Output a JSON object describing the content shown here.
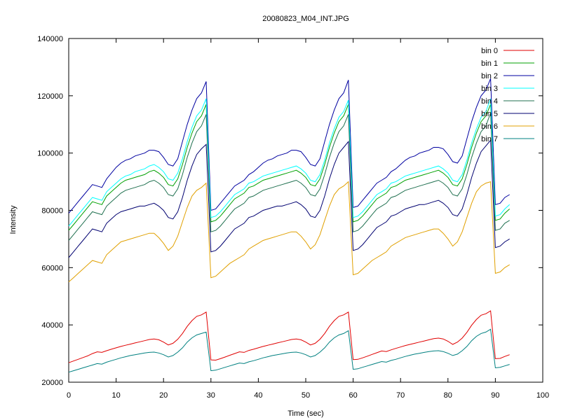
{
  "chart_data": {
    "type": "line",
    "title": "20080823_M04_INT.JPG",
    "xlabel": "Time (sec)",
    "ylabel": "Intensity",
    "xlim": [
      0,
      100
    ],
    "ylim": [
      20000,
      140000
    ],
    "xticks": [
      0,
      10,
      20,
      30,
      40,
      50,
      60,
      70,
      80,
      90,
      100
    ],
    "yticks": [
      20000,
      40000,
      60000,
      80000,
      100000,
      120000,
      140000
    ],
    "grid": false,
    "legend_position": "top-right",
    "x": [
      0,
      1,
      2,
      3,
      4,
      5,
      6,
      7,
      8,
      9,
      10,
      11,
      12,
      13,
      14,
      15,
      16,
      17,
      18,
      19,
      20,
      21,
      22,
      23,
      24,
      25,
      26,
      27,
      28,
      29,
      30,
      31,
      32,
      33,
      34,
      35,
      36,
      37,
      38,
      39,
      40,
      41,
      42,
      43,
      44,
      45,
      46,
      47,
      48,
      49,
      50,
      51,
      52,
      53,
      54,
      55,
      56,
      57,
      58,
      59,
      60,
      61,
      62,
      63,
      64,
      65,
      66,
      67,
      68,
      69,
      70,
      71,
      72,
      73,
      74,
      75,
      76,
      77,
      78,
      79,
      80,
      81,
      82,
      83,
      84,
      85,
      86,
      87,
      88,
      89,
      90,
      91,
      92,
      93
    ],
    "series": [
      {
        "name": "bin 0",
        "color": "#e00000",
        "values": [
          26800,
          27400,
          28000,
          28600,
          29200,
          30000,
          30600,
          30400,
          31000,
          31500,
          32000,
          32500,
          32900,
          33300,
          33700,
          34100,
          34500,
          34900,
          35100,
          34800,
          34000,
          33000,
          33600,
          35000,
          37000,
          39500,
          41500,
          43000,
          43500,
          44500,
          27800,
          27700,
          28200,
          28800,
          29400,
          30000,
          30600,
          30400,
          31100,
          31500,
          32000,
          32500,
          32900,
          33300,
          33700,
          34100,
          34500,
          34900,
          35100,
          34800,
          34000,
          33000,
          33600,
          35000,
          37000,
          39500,
          41500,
          43000,
          43500,
          44500,
          27900,
          28000,
          28500,
          29100,
          29700,
          30300,
          30900,
          30700,
          31300,
          31800,
          32300,
          32800,
          33200,
          33600,
          34000,
          34400,
          34800,
          35200,
          35400,
          35100,
          34300,
          33200,
          34000,
          35400,
          37400,
          39900,
          41900,
          43400,
          43900,
          44900,
          28200,
          28300,
          29000,
          29600
        ]
      },
      {
        "name": "bin 1",
        "color": "#00a000",
        "values": [
          73000,
          75000,
          77000,
          79000,
          81000,
          83000,
          82500,
          82000,
          85000,
          86500,
          88000,
          89500,
          90500,
          91000,
          91500,
          92000,
          92500,
          93500,
          94000,
          93000,
          91500,
          89000,
          88500,
          91000,
          96000,
          102000,
          107000,
          111000,
          113000,
          117000,
          76000,
          76500,
          78000,
          80000,
          82000,
          84000,
          85000,
          86000,
          88000,
          88500,
          89500,
          90500,
          91000,
          91500,
          92000,
          92500,
          93000,
          93500,
          94000,
          93000,
          91500,
          89000,
          88500,
          91000,
          96000,
          102000,
          107000,
          111000,
          113000,
          117000,
          76000,
          76500,
          78000,
          80000,
          82000,
          84000,
          85000,
          86000,
          88000,
          88500,
          89500,
          90500,
          91000,
          91500,
          92000,
          92500,
          93000,
          93500,
          94000,
          93000,
          91500,
          89000,
          88500,
          91000,
          96000,
          102000,
          107000,
          111000,
          113000,
          117000,
          76500,
          77000,
          79000,
          80500
        ]
      },
      {
        "name": "bin 2",
        "color": "#0000a0",
        "values": [
          79000,
          81000,
          83000,
          85000,
          87000,
          89000,
          88500,
          88000,
          91000,
          93000,
          95000,
          96500,
          97500,
          98000,
          99000,
          99500,
          100000,
          101000,
          101000,
          100500,
          98500,
          96000,
          95500,
          98000,
          104000,
          110000,
          115000,
          119000,
          121000,
          125000,
          80000,
          80500,
          82500,
          84500,
          86500,
          88500,
          89500,
          90500,
          92500,
          93500,
          95000,
          96500,
          97500,
          98000,
          99000,
          99500,
          100000,
          101000,
          101000,
          100500,
          98500,
          96000,
          95500,
          98000,
          104000,
          110000,
          115000,
          119000,
          121000,
          125500,
          81000,
          81500,
          83500,
          85500,
          87500,
          89500,
          90500,
          91500,
          93500,
          94500,
          96000,
          97500,
          98500,
          99000,
          100000,
          100500,
          101000,
          102000,
          102000,
          101500,
          99500,
          97000,
          96500,
          99000,
          105000,
          111000,
          116000,
          120000,
          122000,
          126000,
          82000,
          82500,
          84500,
          85500
        ]
      },
      {
        "name": "bin 3",
        "color": "#00ffff",
        "values": [
          74500,
          76500,
          78500,
          80500,
          82500,
          84500,
          84000,
          83500,
          86500,
          88000,
          89500,
          91000,
          92000,
          92500,
          93500,
          94000,
          94500,
          95500,
          96000,
          95000,
          93500,
          91000,
          90500,
          93000,
          98000,
          104000,
          109000,
          113000,
          115000,
          119000,
          77500,
          78000,
          79500,
          81500,
          83500,
          85500,
          86500,
          87500,
          89500,
          90000,
          91000,
          92000,
          92500,
          93000,
          93500,
          94000,
          94500,
          95000,
          95500,
          94500,
          93000,
          90500,
          90000,
          92500,
          97500,
          103500,
          108500,
          112500,
          114500,
          118500,
          77500,
          78000,
          79500,
          81500,
          83500,
          85500,
          86500,
          87500,
          89500,
          90000,
          91000,
          92000,
          92500,
          93000,
          93500,
          94000,
          94500,
          95000,
          95500,
          94500,
          93000,
          90500,
          90000,
          92500,
          97500,
          103500,
          108500,
          112500,
          114500,
          119000,
          78000,
          78500,
          80500,
          82000
        ]
      },
      {
        "name": "bin 4",
        "color": "#207050",
        "values": [
          69500,
          71500,
          73500,
          75500,
          77500,
          79500,
          79000,
          78500,
          81500,
          83000,
          84500,
          86000,
          87000,
          87500,
          88000,
          88500,
          89000,
          90000,
          90500,
          89500,
          88000,
          85500,
          85000,
          87500,
          92500,
          98500,
          103500,
          107500,
          109500,
          113500,
          72500,
          73000,
          74500,
          76500,
          78500,
          80500,
          81500,
          82500,
          84500,
          85000,
          86000,
          87000,
          87500,
          88000,
          88500,
          89000,
          89500,
          90000,
          90500,
          89500,
          88000,
          85500,
          85000,
          87500,
          92500,
          98500,
          103500,
          107500,
          109500,
          113500,
          72500,
          73000,
          74500,
          76500,
          78500,
          80500,
          81500,
          82500,
          84500,
          85000,
          86000,
          87000,
          87500,
          88000,
          88500,
          89000,
          89500,
          90000,
          90500,
          89500,
          88000,
          85500,
          85000,
          87500,
          92500,
          98500,
          103500,
          107500,
          109500,
          114000,
          73000,
          73500,
          75500,
          76500
        ]
      },
      {
        "name": "bin 5",
        "color": "#000070",
        "values": [
          63500,
          65500,
          67500,
          69500,
          71500,
          73500,
          73000,
          72500,
          75500,
          77000,
          78500,
          79500,
          80000,
          80500,
          81000,
          81500,
          81500,
          82000,
          82500,
          81500,
          80000,
          77500,
          77000,
          79500,
          84500,
          90500,
          95500,
          99500,
          101500,
          103000,
          65500,
          66000,
          67500,
          69500,
          71500,
          73500,
          74500,
          75500,
          77500,
          78000,
          79000,
          80000,
          80500,
          81000,
          81500,
          81500,
          82000,
          82500,
          83000,
          82000,
          80500,
          78000,
          77500,
          80000,
          85000,
          91000,
          96000,
          100000,
          102000,
          104000,
          66000,
          66500,
          68000,
          70000,
          72000,
          74000,
          75000,
          76000,
          78000,
          78500,
          79500,
          80500,
          81000,
          81500,
          82000,
          82000,
          82500,
          83000,
          83500,
          82500,
          81000,
          78500,
          78000,
          80500,
          85500,
          91500,
          96500,
          100500,
          102500,
          104500,
          67000,
          67500,
          69000,
          70000
        ]
      },
      {
        "name": "bin 6",
        "color": "#e0a000",
        "values": [
          55000,
          56500,
          58000,
          59500,
          61000,
          62500,
          62000,
          61500,
          64500,
          66000,
          67500,
          69000,
          69500,
          70000,
          70500,
          71000,
          71500,
          72000,
          72000,
          70500,
          68500,
          66000,
          67500,
          71000,
          76000,
          81000,
          85000,
          87000,
          88000,
          89500,
          56500,
          57000,
          58500,
          60000,
          61500,
          62500,
          63500,
          64500,
          66500,
          67500,
          68500,
          69500,
          70000,
          70500,
          71000,
          71500,
          72000,
          72500,
          72500,
          71000,
          69000,
          66500,
          68000,
          71500,
          76500,
          81500,
          85500,
          87500,
          88500,
          90000,
          57500,
          58000,
          59500,
          61000,
          62500,
          63500,
          64500,
          65500,
          67500,
          68500,
          69500,
          70500,
          71000,
          71500,
          72000,
          72500,
          73000,
          73500,
          73500,
          72000,
          70000,
          67500,
          69000,
          72500,
          77500,
          82500,
          86500,
          88500,
          89500,
          90000,
          58000,
          58500,
          60000,
          61000
        ]
      },
      {
        "name": "bin 7",
        "color": "#008080",
        "values": [
          23500,
          24000,
          24500,
          25000,
          25500,
          26000,
          26500,
          26300,
          27000,
          27500,
          28000,
          28500,
          28900,
          29300,
          29600,
          29900,
          30200,
          30400,
          30500,
          30200,
          29600,
          28800,
          29300,
          30500,
          32000,
          34000,
          35500,
          36500,
          37000,
          37500,
          24000,
          24200,
          24700,
          25200,
          25700,
          26200,
          26700,
          26500,
          27100,
          27500,
          28000,
          28500,
          28900,
          29300,
          29600,
          29900,
          30200,
          30400,
          30500,
          30200,
          29600,
          28800,
          29300,
          30500,
          32000,
          34000,
          35500,
          36500,
          37000,
          38000,
          24500,
          24700,
          25200,
          25700,
          26200,
          26700,
          27200,
          27000,
          27600,
          28000,
          28500,
          29000,
          29400,
          29800,
          30100,
          30400,
          30700,
          30900,
          31000,
          30700,
          30100,
          29300,
          29800,
          31000,
          32500,
          34500,
          36000,
          37000,
          37500,
          38500,
          25000,
          25200,
          25700,
          26200
        ]
      }
    ]
  }
}
